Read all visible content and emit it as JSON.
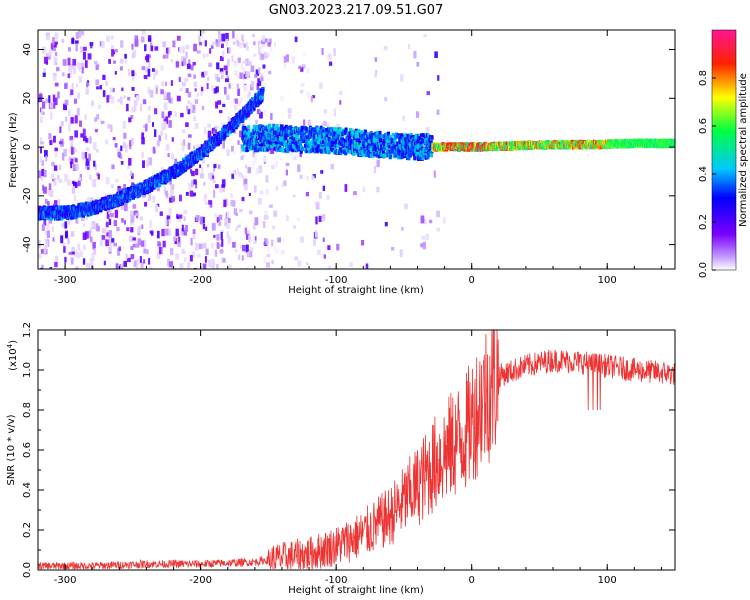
{
  "title": "GN03.2023.217.09.51.G07",
  "chart_data": [
    {
      "type": "heatmap",
      "xlabel": "Height of straight line (km)",
      "ylabel": "Frequency (Hz)",
      "xlim": [
        -320,
        150
      ],
      "ylim": [
        -50,
        48
      ],
      "xticks": [
        -300,
        -200,
        -100,
        0,
        100
      ],
      "yticks": [
        -40,
        -20,
        0,
        20,
        40
      ],
      "colorbar": {
        "label": "Normalized spectral amplitude",
        "range": [
          0,
          1
        ],
        "ticks": [
          "0.0",
          "0.2",
          "0.4",
          "0.6",
          "0.8"
        ]
      },
      "ridges": [
        {
          "x": [
            -320,
            -300,
            -280,
            -260,
            -240,
            -220,
            -200,
            -185,
            -170,
            -155
          ],
          "y": [
            -27,
            -27,
            -25,
            -21,
            -16,
            -10,
            -2,
            5,
            13,
            22
          ],
          "amplitude": 0.35
        },
        {
          "x": [
            -170,
            -150,
            -130,
            -110,
            -90,
            -70,
            -50,
            -30
          ],
          "y": [
            3,
            4,
            3,
            3,
            2,
            1,
            0,
            0
          ],
          "amplitude": 0.4
        },
        {
          "x": [
            -30,
            0,
            30,
            60,
            90,
            120,
            150
          ],
          "y": [
            0,
            0,
            0.5,
            1,
            1,
            1.5,
            1.5
          ],
          "amplitude": 0.75
        }
      ]
    },
    {
      "type": "line",
      "xlabel": "Height of straight line (km)",
      "ylabel": "SNR (10 * v/v)",
      "exponent_label": "(x10",
      "exponent_power": "4",
      "exponent_close": ")",
      "xlim": [
        -320,
        150
      ],
      "ylim": [
        0,
        1.2
      ],
      "xticks": [
        -300,
        -200,
        -100,
        0,
        100
      ],
      "yticks": [
        "0.0",
        "0.2",
        "0.4",
        "0.6",
        "0.8",
        "1.0",
        "1.2"
      ],
      "color": "#ee3333",
      "series": [
        {
          "x": [
            -320,
            -280,
            -240,
            -200,
            -160,
            -140,
            -120,
            -100,
            -80,
            -60,
            -40,
            -25,
            -15,
            -5,
            0,
            10,
            20,
            40,
            60,
            80,
            100,
            120,
            150
          ],
          "y": [
            0.02,
            0.02,
            0.03,
            0.03,
            0.04,
            0.06,
            0.08,
            0.12,
            0.18,
            0.27,
            0.42,
            0.55,
            0.62,
            0.68,
            0.75,
            0.88,
            0.97,
            1.02,
            1.05,
            1.04,
            1.02,
            1.0,
            0.98
          ]
        }
      ]
    }
  ]
}
